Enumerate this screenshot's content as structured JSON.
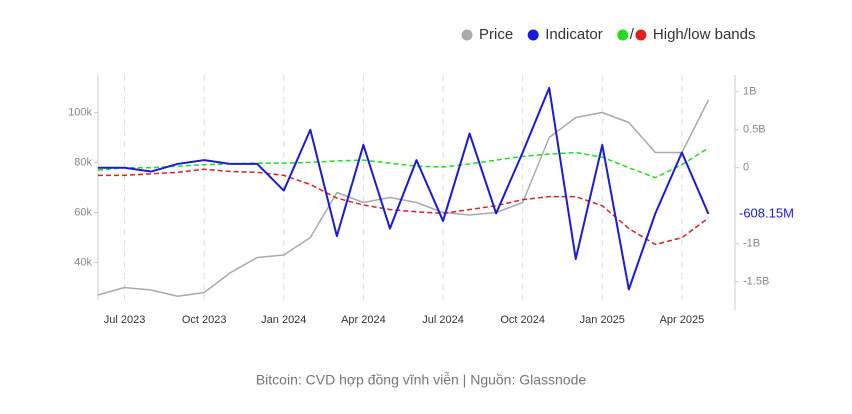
{
  "chart_data": {
    "type": "line",
    "caption": "Bitcoin: CVD hợp đồng vĩnh viễn | Nguồn: Glassnode",
    "x": [
      "2023-06",
      "2023-07",
      "2023-08",
      "2023-09",
      "2023-10",
      "2023-11",
      "2023-12",
      "2024-01",
      "2024-02",
      "2024-03",
      "2024-04",
      "2024-05",
      "2024-06",
      "2024-07",
      "2024-08",
      "2024-09",
      "2024-10",
      "2024-11",
      "2024-12",
      "2025-01",
      "2025-02",
      "2025-03",
      "2025-04",
      "2025-05"
    ],
    "xlim": [
      "2023-06",
      "2025-06"
    ],
    "xticks": [
      {
        "value": "2023-07",
        "label": "Jul 2023"
      },
      {
        "value": "2023-10",
        "label": "Oct 2023"
      },
      {
        "value": "2024-01",
        "label": "Jan 2024"
      },
      {
        "value": "2024-04",
        "label": "Apr 2024"
      },
      {
        "value": "2024-07",
        "label": "Jul 2024"
      },
      {
        "value": "2024-10",
        "label": "Oct 2024"
      },
      {
        "value": "2025-01",
        "label": "Jan 2025"
      },
      {
        "value": "2025-04",
        "label": "Apr 2025"
      }
    ],
    "ylim": [
      25000,
      115000
    ],
    "yticks": [
      {
        "value": 40000,
        "label": "40k"
      },
      {
        "value": 60000,
        "label": "60k"
      },
      {
        "value": 80000,
        "label": "80k"
      },
      {
        "value": 100000,
        "label": "100k"
      }
    ],
    "y2lim": [
      -1.74,
      1.22
    ],
    "y2ticks": [
      {
        "value": 1,
        "label": "1B"
      },
      {
        "value": 0.5,
        "label": "0.5B"
      },
      0,
      {
        "value": -1,
        "label": "-1B"
      },
      {
        "value": -1.5,
        "label": "-1.5B"
      }
    ],
    "series": [
      {
        "name": "Price",
        "color": "#aaaaaa",
        "values": [
          27000,
          30000,
          29000,
          26500,
          28000,
          36000,
          42000,
          43000,
          50000,
          68000,
          64000,
          66000,
          64000,
          60000,
          59000,
          60000,
          64000,
          90000,
          98000,
          100000,
          96000,
          84000,
          84000,
          105000
        ]
      },
      {
        "name": "Indicator",
        "color": "#1a1adb",
        "axis": "y2",
        "values": [
          0,
          0,
          -0.05,
          0.05,
          0.1,
          0.05,
          0.05,
          -0.3,
          0.5,
          -0.9,
          0.3,
          -0.8,
          0.1,
          -0.7,
          0.45,
          -0.6,
          0.2,
          1.05,
          -1.2,
          0.3,
          -1.6,
          -0.6,
          0.2,
          -0.60815
        ],
        "value_labels": [
          null,
          null,
          null,
          null,
          null,
          null,
          null,
          null,
          null,
          null,
          null,
          null,
          null,
          null,
          null,
          null,
          null,
          null,
          null,
          null,
          null,
          null,
          null,
          "-608.15M"
        ]
      }
    ],
    "bands": {
      "name": "High/low bands",
      "separator": "/",
      "high": {
        "color": "#22dd22",
        "values": [
          -0.03,
          0,
          0,
          0.02,
          0.04,
          0.05,
          0.06,
          0.06,
          0.07,
          0.09,
          0.1,
          0.06,
          0.02,
          0.01,
          0.05,
          0.1,
          0.15,
          0.18,
          0.2,
          0.14,
          0.0,
          -0.13,
          0.04,
          0.26
        ]
      },
      "low": {
        "color": "#e02020",
        "values": [
          -0.1,
          -0.1,
          -0.08,
          -0.06,
          -0.02,
          -0.05,
          -0.06,
          -0.1,
          -0.22,
          -0.4,
          -0.49,
          -0.55,
          -0.58,
          -0.6,
          -0.55,
          -0.5,
          -0.42,
          -0.38,
          -0.38,
          -0.5,
          -0.8,
          -1.01,
          -0.92,
          -0.66
        ]
      }
    }
  }
}
